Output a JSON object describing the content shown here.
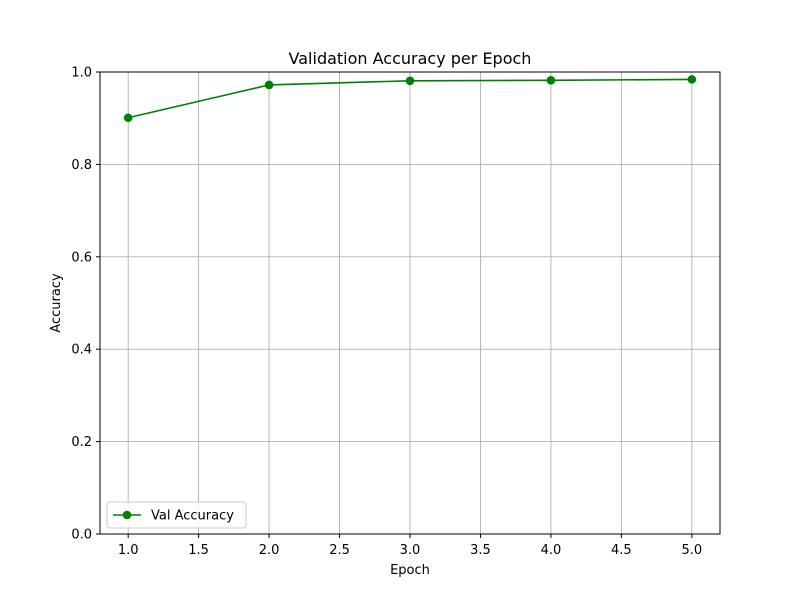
{
  "chart_data": {
    "type": "line",
    "title": "Validation Accuracy per Epoch",
    "xlabel": "Epoch",
    "ylabel": "Accuracy",
    "xlim": [
      0.8,
      5.2
    ],
    "ylim": [
      0.0,
      1.0
    ],
    "xticks": [
      "1.0",
      "1.5",
      "2.0",
      "2.5",
      "3.0",
      "3.5",
      "4.0",
      "4.5",
      "5.0"
    ],
    "yticks": [
      "0.0",
      "0.2",
      "0.4",
      "0.6",
      "0.8",
      "1.0"
    ],
    "grid": true,
    "legend_position": "lower-left",
    "x": [
      1,
      2,
      3,
      4,
      5
    ],
    "series": [
      {
        "name": "Val Accuracy",
        "values": [
          0.901,
          0.972,
          0.981,
          0.982,
          0.984
        ],
        "color": "#008000",
        "marker": "circle"
      }
    ]
  }
}
